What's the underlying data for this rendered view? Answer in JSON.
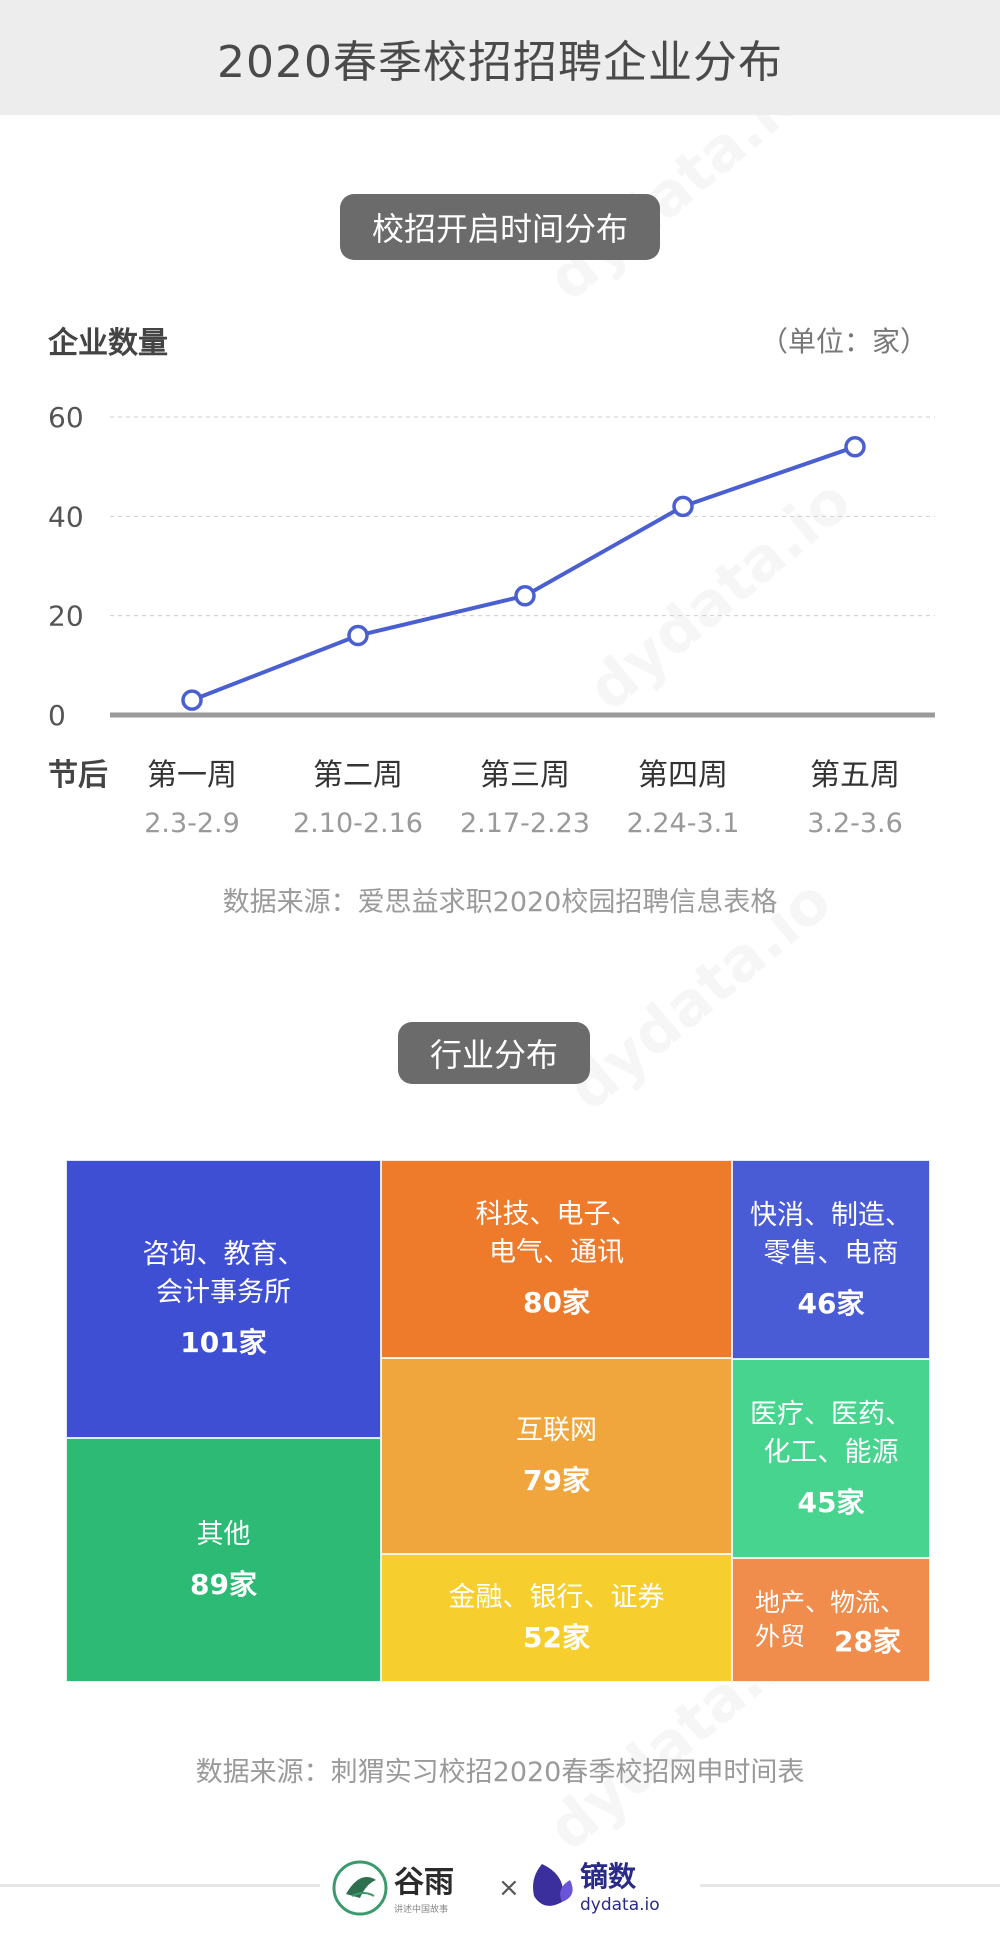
{
  "header": {
    "title": "2020春季校招招聘企业分布"
  },
  "section1": {
    "title": "校招开启时间分布"
  },
  "section2": {
    "title": "行业分布"
  },
  "chart_data": [
    {
      "type": "line",
      "ylabel": "企业数量",
      "unit": "（单位：家）",
      "ylim": [
        0,
        60
      ],
      "yticks": [
        "0",
        "20",
        "40",
        "60"
      ],
      "row_label": "节后",
      "categories": [
        "第一周",
        "第二周",
        "第三周",
        "第四周",
        "第五周"
      ],
      "date_ranges": [
        "2.3-2.9",
        "2.10-2.16",
        "2.17-2.23",
        "2.24-3.1",
        "3.2-3.6"
      ],
      "values": [
        3,
        16,
        24,
        42,
        54
      ],
      "grid": true,
      "color": "#4a5fd0",
      "source": "数据来源：爱思益求职2020校园招聘信息表格"
    },
    {
      "type": "treemap",
      "items": [
        {
          "label": "咨询、教育、\n会计事务所",
          "value": "101家",
          "color": "#3f4fd4"
        },
        {
          "label": "其他",
          "value": "89家",
          "color": "#2cba74"
        },
        {
          "label": "科技、电子、\n电气、通讯",
          "value": "80家",
          "color": "#ee7a2c"
        },
        {
          "label": "互联网",
          "value": "79家",
          "color": "#f0a63c"
        },
        {
          "label": "金融、银行、证券",
          "value": "52家",
          "color": "#f6cf2e"
        },
        {
          "label": "快消、制造、\n零售、电商",
          "value": "46家",
          "color": "#4a5bd6"
        },
        {
          "label": "医疗、医药、\n化工、能源",
          "value": "45家",
          "color": "#47d48e"
        },
        {
          "label": "地产、物流、\n外贸",
          "value": "28家",
          "color": "#f08d4c"
        }
      ],
      "source": "数据来源：刺猬实习校招2020春季校招网申时间表"
    }
  ],
  "footer": {
    "brand1": "谷雨",
    "brand1_sub": "讲述中国故事",
    "times": "×",
    "brand2": "镝数",
    "brand2_sub": "dydata.io"
  },
  "colors": {
    "accent": "#4a5fd0",
    "pill": "#6b6b6b",
    "header_bg": "#ededed"
  }
}
